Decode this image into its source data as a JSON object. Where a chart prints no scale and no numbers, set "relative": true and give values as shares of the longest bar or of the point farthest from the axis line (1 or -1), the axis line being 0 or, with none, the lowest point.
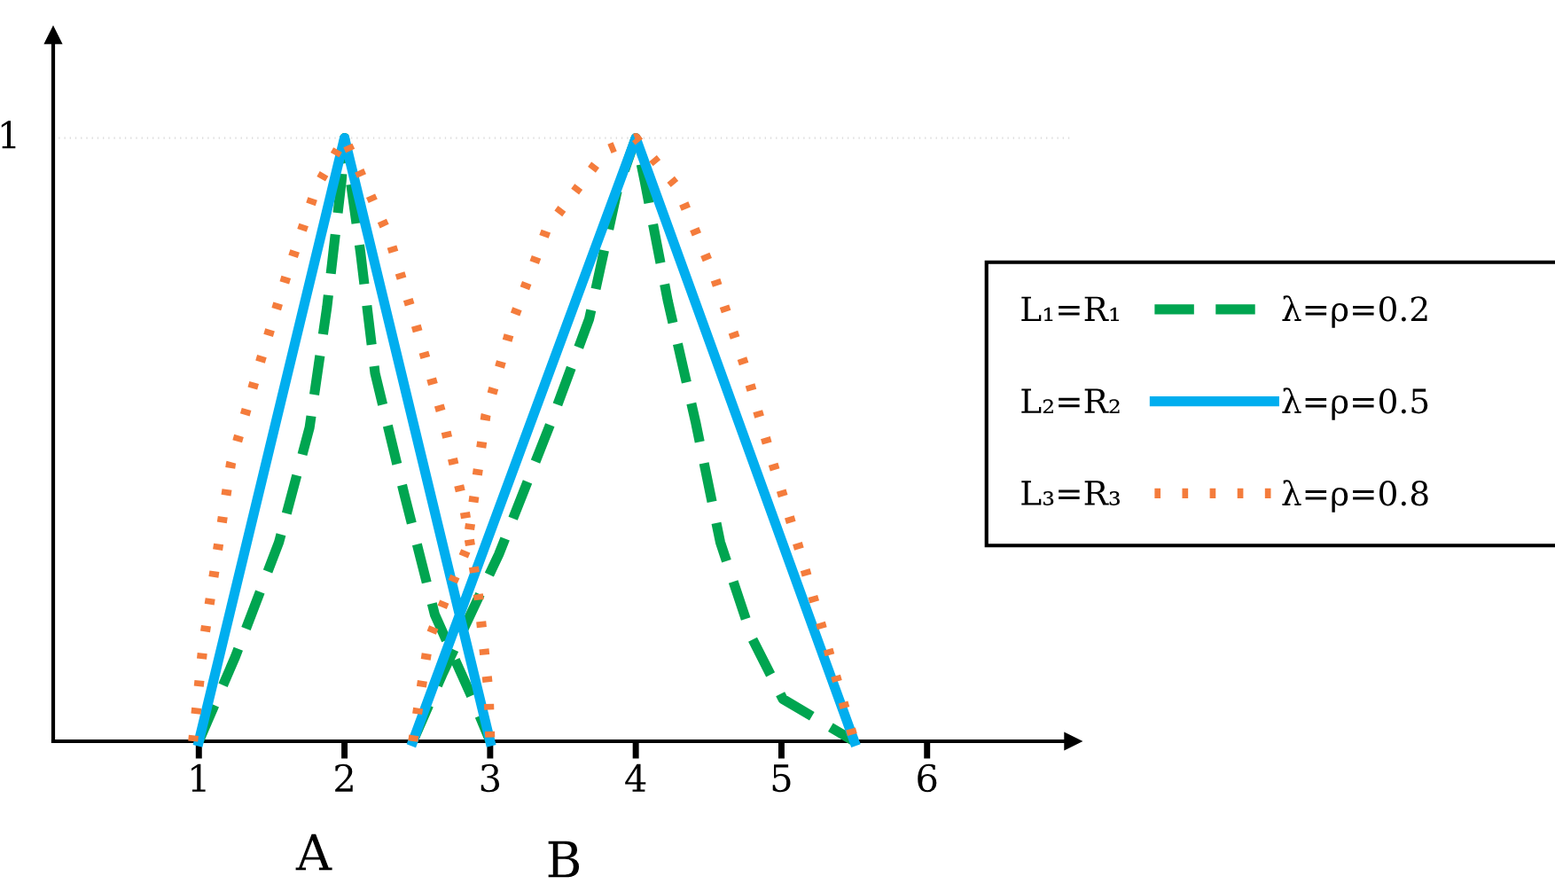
{
  "chart_data": {
    "type": "line",
    "legend": "right",
    "grid": false,
    "marker": "none",
    "relative": true,
    "xlim": [
      0,
      7
    ],
    "xticks": [
      1,
      2,
      3,
      4,
      5,
      6
    ],
    "ref_lines": [
      {
        "axis": "y",
        "value": 1,
        "color": "#dddddd",
        "line_style": "dotted"
      }
    ],
    "series": [
      {
        "name": "L₁=R₁",
        "color": "#00a550",
        "line_style": "dashed",
        "x": [
          1,
          1.25,
          1.55,
          1.76,
          1.88,
          1.98,
          2,
          2.11,
          2.21,
          2.41,
          2.62,
          2.88,
          3,
          null,
          2.47,
          2.67,
          3.06,
          3.42,
          3.68,
          3.87,
          4,
          4.06,
          4.22,
          4.41,
          4.58,
          4.8,
          5.01,
          5.5
        ],
        "values": [
          0,
          0.14,
          0.33,
          0.52,
          0.72,
          0.93,
          1,
          0.81,
          0.61,
          0.41,
          0.21,
          0.07,
          0,
          null,
          0,
          0.11,
          0.31,
          0.53,
          0.7,
          0.91,
          1,
          0.93,
          0.73,
          0.53,
          0.33,
          0.17,
          0.07,
          0
        ]
      },
      {
        "name": "L₂=R₂",
        "color": "#00aeef",
        "line_style": "solid",
        "x": [
          1,
          2,
          3,
          null,
          2.47,
          4,
          5.5
        ],
        "values": [
          0,
          1,
          0,
          null,
          0,
          1,
          0
        ]
      },
      {
        "name": "L₃=R₃",
        "color": "#f47c3c",
        "line_style": "dotted",
        "x": [
          0.96,
          1.03,
          1.22,
          1.41,
          1.6,
          1.81,
          2,
          2.3,
          2.49,
          2.67,
          2.82,
          2.92,
          2.99,
          3,
          null,
          2.47,
          2.58,
          2.84,
          2.97,
          3.16,
          3.39,
          3.8,
          4,
          4.28,
          4.54,
          4.75,
          4.93,
          5.12,
          5.3,
          5.5
        ],
        "values": [
          0,
          0.16,
          0.46,
          0.62,
          0.77,
          0.92,
          1,
          0.84,
          0.69,
          0.54,
          0.39,
          0.24,
          0.08,
          0,
          null,
          0,
          0.17,
          0.32,
          0.54,
          0.7,
          0.85,
          0.98,
          1,
          0.92,
          0.77,
          0.62,
          0.47,
          0.32,
          0.17,
          0
        ]
      }
    ],
    "annotations": [
      "1",
      "A",
      "B",
      "λ=ρ=0.2",
      "λ=ρ=0.5",
      "λ=ρ=0.8"
    ]
  }
}
